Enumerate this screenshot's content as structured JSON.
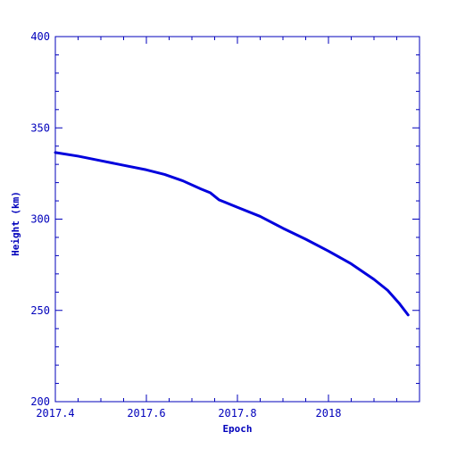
{
  "colors": {
    "axis": "#0000bb",
    "series": "#0000dd",
    "background": "#ffffff"
  },
  "chart_data": {
    "type": "line",
    "title": "",
    "xlabel": "Epoch",
    "ylabel": "Height (km)",
    "xlim": [
      2017.4,
      2018.2
    ],
    "ylim": [
      200,
      400
    ],
    "x_tick_labels": [
      {
        "value": 2017.4,
        "label": "2017.4"
      },
      {
        "value": 2017.6,
        "label": "2017.6"
      },
      {
        "value": 2017.8,
        "label": "2017.8"
      },
      {
        "value": 2018.0,
        "label": "2018"
      }
    ],
    "y_tick_labels": [
      {
        "value": 200,
        "label": "200"
      },
      {
        "value": 250,
        "label": "250"
      },
      {
        "value": 300,
        "label": "300"
      },
      {
        "value": 350,
        "label": "350"
      },
      {
        "value": 400,
        "label": "400"
      }
    ],
    "x_minor_step": 0.05,
    "y_minor_step": 10,
    "grid": false,
    "legend": "none",
    "series": [
      {
        "x": [
          2017.4,
          2017.45,
          2017.5,
          2017.55,
          2017.6,
          2017.64,
          2017.68,
          2017.72,
          2017.74,
          2017.76,
          2017.8,
          2017.85,
          2017.9,
          2017.95,
          2018.0,
          2018.05,
          2018.1,
          2018.13,
          2018.155,
          2018.175
        ],
        "y": [
          336.5,
          334.5,
          332,
          329.5,
          327,
          324.5,
          321,
          316.5,
          314.5,
          310.5,
          306.5,
          301.5,
          295,
          289,
          282.5,
          275.5,
          267,
          261,
          254,
          247.5
        ]
      }
    ]
  }
}
